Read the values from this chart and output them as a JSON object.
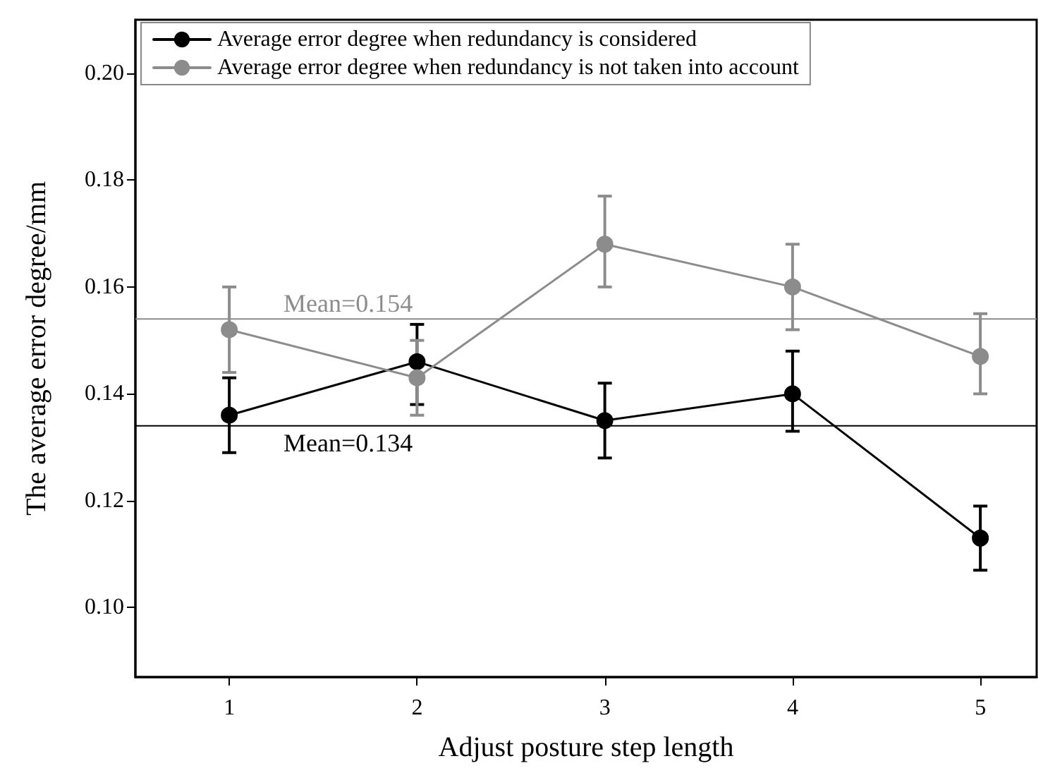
{
  "chart_data": {
    "type": "line",
    "xlabel": "Adjust posture step length",
    "ylabel": "The average error degree/mm",
    "x": [
      1,
      2,
      3,
      4,
      5
    ],
    "series": [
      {
        "name": "Average error degree when redundancy is considered",
        "color": "#000000",
        "values": [
          0.136,
          0.146,
          0.135,
          0.14,
          0.113
        ],
        "errors": [
          [
            0.129,
            0.143
          ],
          [
            0.138,
            0.153
          ],
          [
            0.128,
            0.142
          ],
          [
            0.133,
            0.148
          ],
          [
            0.107,
            0.119
          ]
        ]
      },
      {
        "name": "Average error degree when redundancy is not taken into account",
        "color": "#8c8c8c",
        "values": [
          0.152,
          0.143,
          0.168,
          0.16,
          0.147
        ],
        "errors": [
          [
            0.144,
            0.16
          ],
          [
            0.136,
            0.15
          ],
          [
            0.16,
            0.177
          ],
          [
            0.152,
            0.168
          ],
          [
            0.14,
            0.155
          ]
        ]
      }
    ],
    "xlim": [
      0.5,
      5.3
    ],
    "xticks": [
      1,
      2,
      3,
      4,
      5
    ],
    "ylim": [
      0.087,
      0.21
    ],
    "yticks": [
      {
        "value": 0.1,
        "label": "0.10"
      },
      0.12,
      0.14,
      0.16,
      0.18,
      {
        "value": 0.2,
        "label": "0.20"
      }
    ],
    "ref_lines": [
      {
        "axis": "y",
        "value": 0.154,
        "label": "Mean=0.154",
        "color": "#8c8c8c"
      },
      {
        "axis": "y",
        "value": 0.134,
        "label": "Mean=0.134",
        "color": "#000000"
      }
    ],
    "grid": false,
    "legend": "top left",
    "marker": "circle",
    "line_style": "solid"
  }
}
